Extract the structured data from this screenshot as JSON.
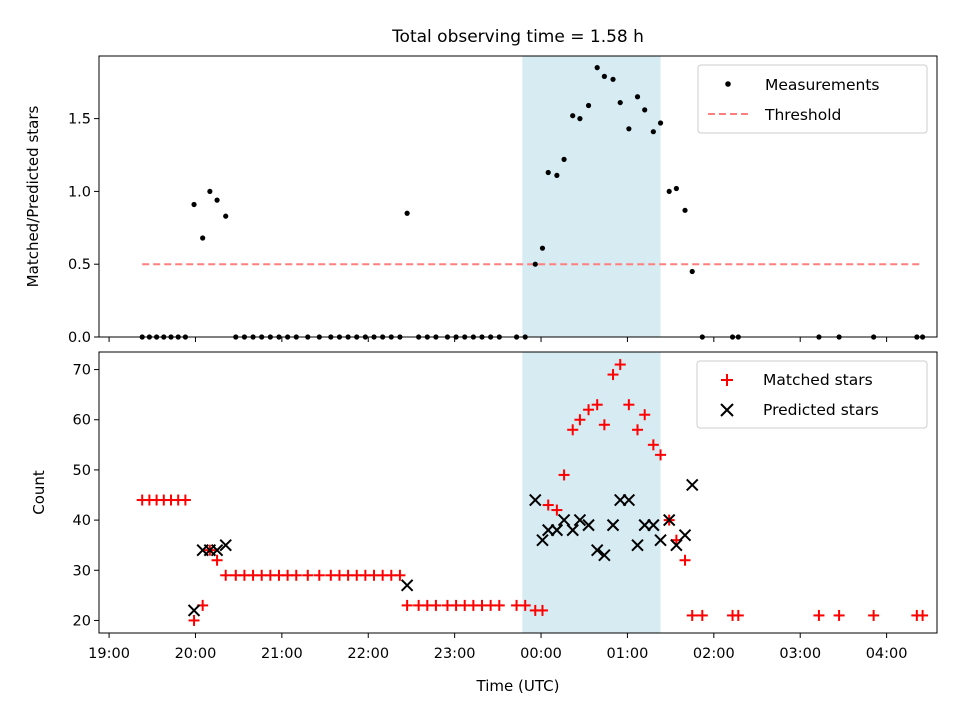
{
  "chart_data": [
    {
      "type": "scatter",
      "title": "Total observing time = 1.58 h",
      "xlabel": "",
      "ylabel": "Matched/Predicted stars",
      "xlim": [
        "18:53",
        "04:35"
      ],
      "ylim": [
        0,
        1.93
      ],
      "yticks": [
        "0.0",
        "0.5",
        "1.0",
        "1.5"
      ],
      "legend": "top-right",
      "highlight_span": [
        "23:47",
        "01:23"
      ],
      "series": [
        {
          "name": "Measurements",
          "marker": "dot",
          "color": "#000000",
          "points": [
            [
              "19:23",
              0
            ],
            [
              "19:28",
              0
            ],
            [
              "19:33",
              0
            ],
            [
              "19:38",
              0
            ],
            [
              "19:43",
              0
            ],
            [
              "19:48",
              0
            ],
            [
              "19:53",
              0
            ],
            [
              "19:59",
              0.91
            ],
            [
              "20:05",
              0.68
            ],
            [
              "20:10",
              1.0
            ],
            [
              "20:15",
              0.94
            ],
            [
              "20:21",
              0.83
            ],
            [
              "20:28",
              0
            ],
            [
              "20:34",
              0
            ],
            [
              "20:40",
              0
            ],
            [
              "20:46",
              0
            ],
            [
              "20:52",
              0
            ],
            [
              "20:58",
              0
            ],
            [
              "21:04",
              0
            ],
            [
              "21:10",
              0
            ],
            [
              "21:18",
              0
            ],
            [
              "21:26",
              0
            ],
            [
              "21:34",
              0
            ],
            [
              "21:40",
              0
            ],
            [
              "21:46",
              0
            ],
            [
              "21:52",
              0
            ],
            [
              "21:58",
              0
            ],
            [
              "22:04",
              0
            ],
            [
              "22:10",
              0
            ],
            [
              "22:16",
              0
            ],
            [
              "22:22",
              0
            ],
            [
              "22:27",
              0.85
            ],
            [
              "22:35",
              0
            ],
            [
              "22:41",
              0
            ],
            [
              "22:47",
              0
            ],
            [
              "22:55",
              0
            ],
            [
              "23:01",
              0
            ],
            [
              "23:07",
              0
            ],
            [
              "23:13",
              0
            ],
            [
              "23:19",
              0
            ],
            [
              "23:25",
              0
            ],
            [
              "23:31",
              0
            ],
            [
              "23:43",
              0
            ],
            [
              "23:49",
              0
            ],
            [
              "23:56",
              0.5
            ],
            [
              "24:01",
              0.61
            ],
            [
              "24:05",
              1.13
            ],
            [
              "24:11",
              1.11
            ],
            [
              "24:16",
              1.22
            ],
            [
              "24:22",
              1.52
            ],
            [
              "24:27",
              1.5
            ],
            [
              "24:33",
              1.59
            ],
            [
              "24:39",
              1.85
            ],
            [
              "24:44",
              1.79
            ],
            [
              "24:50",
              1.77
            ],
            [
              "24:55",
              1.61
            ],
            [
              "25:01",
              1.43
            ],
            [
              "25:07",
              1.65
            ],
            [
              "25:12",
              1.56
            ],
            [
              "25:18",
              1.41
            ],
            [
              "25:23",
              1.47
            ],
            [
              "25:29",
              1.0
            ],
            [
              "25:34",
              1.02
            ],
            [
              "25:40",
              0.87
            ],
            [
              "25:45",
              0.45
            ],
            [
              "25:52",
              0
            ],
            [
              "26:13",
              0
            ],
            [
              "26:17",
              0
            ],
            [
              "27:13",
              0
            ],
            [
              "27:27",
              0
            ],
            [
              "27:51",
              0
            ],
            [
              "28:21",
              0
            ],
            [
              "28:25",
              0
            ]
          ]
        },
        {
          "name": "Threshold",
          "marker": "dashed-line",
          "color": "#ff7f7f",
          "points": [
            [
              "19:23",
              0.5
            ],
            [
              "28:25",
              0.5
            ]
          ]
        }
      ]
    },
    {
      "type": "scatter",
      "title": "",
      "xlabel": "Time (UTC)",
      "ylabel": "Count",
      "xlim": [
        "18:53",
        "04:35"
      ],
      "ylim": [
        17.5,
        73.5
      ],
      "xticks": [
        "19:00",
        "20:00",
        "21:00",
        "22:00",
        "23:00",
        "00:00",
        "01:00",
        "02:00",
        "03:00",
        "04:00"
      ],
      "yticks": [
        "20",
        "30",
        "40",
        "50",
        "60",
        "70"
      ],
      "legend": "top-right",
      "highlight_span": [
        "23:47",
        "01:23"
      ],
      "series": [
        {
          "name": "Matched stars",
          "marker": "plus",
          "color": "#ff0000",
          "points": [
            [
              "19:23",
              44
            ],
            [
              "19:28",
              44
            ],
            [
              "19:33",
              44
            ],
            [
              "19:38",
              44
            ],
            [
              "19:43",
              44
            ],
            [
              "19:48",
              44
            ],
            [
              "19:53",
              44
            ],
            [
              "19:59",
              20
            ],
            [
              "20:05",
              23
            ],
            [
              "20:10",
              34
            ],
            [
              "20:15",
              32
            ],
            [
              "20:21",
              29
            ],
            [
              "20:28",
              29
            ],
            [
              "20:34",
              29
            ],
            [
              "20:40",
              29
            ],
            [
              "20:46",
              29
            ],
            [
              "20:52",
              29
            ],
            [
              "20:58",
              29
            ],
            [
              "21:04",
              29
            ],
            [
              "21:10",
              29
            ],
            [
              "21:18",
              29
            ],
            [
              "21:26",
              29
            ],
            [
              "21:34",
              29
            ],
            [
              "21:40",
              29
            ],
            [
              "21:46",
              29
            ],
            [
              "21:52",
              29
            ],
            [
              "21:58",
              29
            ],
            [
              "22:04",
              29
            ],
            [
              "22:10",
              29
            ],
            [
              "22:16",
              29
            ],
            [
              "22:22",
              29
            ],
            [
              "22:27",
              23
            ],
            [
              "22:35",
              23
            ],
            [
              "22:41",
              23
            ],
            [
              "22:47",
              23
            ],
            [
              "22:55",
              23
            ],
            [
              "23:01",
              23
            ],
            [
              "23:07",
              23
            ],
            [
              "23:13",
              23
            ],
            [
              "23:19",
              23
            ],
            [
              "23:25",
              23
            ],
            [
              "23:31",
              23
            ],
            [
              "23:43",
              23
            ],
            [
              "23:49",
              23
            ],
            [
              "23:56",
              22
            ],
            [
              "24:01",
              22
            ],
            [
              "24:05",
              43
            ],
            [
              "24:11",
              42
            ],
            [
              "24:16",
              49
            ],
            [
              "24:22",
              58
            ],
            [
              "24:27",
              60
            ],
            [
              "24:33",
              62
            ],
            [
              "24:39",
              63
            ],
            [
              "24:44",
              59
            ],
            [
              "24:50",
              69
            ],
            [
              "24:55",
              71
            ],
            [
              "25:01",
              63
            ],
            [
              "25:07",
              58
            ],
            [
              "25:12",
              61
            ],
            [
              "25:18",
              55
            ],
            [
              "25:23",
              53
            ],
            [
              "25:29",
              40
            ],
            [
              "25:34",
              36
            ],
            [
              "25:40",
              32
            ],
            [
              "25:45",
              21
            ],
            [
              "25:52",
              21
            ],
            [
              "26:13",
              21
            ],
            [
              "26:17",
              21
            ],
            [
              "27:13",
              21
            ],
            [
              "27:27",
              21
            ],
            [
              "27:51",
              21
            ],
            [
              "28:21",
              21
            ],
            [
              "28:25",
              21
            ]
          ]
        },
        {
          "name": "Predicted stars",
          "marker": "x",
          "color": "#000000",
          "points": [
            [
              "19:59",
              22
            ],
            [
              "20:05",
              34
            ],
            [
              "20:10",
              34
            ],
            [
              "20:15",
              34
            ],
            [
              "20:21",
              35
            ],
            [
              "22:27",
              27
            ],
            [
              "23:56",
              44
            ],
            [
              "24:01",
              36
            ],
            [
              "24:05",
              38
            ],
            [
              "24:11",
              38
            ],
            [
              "24:16",
              40
            ],
            [
              "24:22",
              38
            ],
            [
              "24:27",
              40
            ],
            [
              "24:33",
              39
            ],
            [
              "24:39",
              34
            ],
            [
              "24:44",
              33
            ],
            [
              "24:50",
              39
            ],
            [
              "24:55",
              44
            ],
            [
              "25:01",
              44
            ],
            [
              "25:07",
              35
            ],
            [
              "25:12",
              39
            ],
            [
              "25:18",
              39
            ],
            [
              "25:23",
              36
            ],
            [
              "25:29",
              40
            ],
            [
              "25:34",
              35
            ],
            [
              "25:40",
              37
            ],
            [
              "25:45",
              47
            ]
          ]
        }
      ]
    }
  ]
}
